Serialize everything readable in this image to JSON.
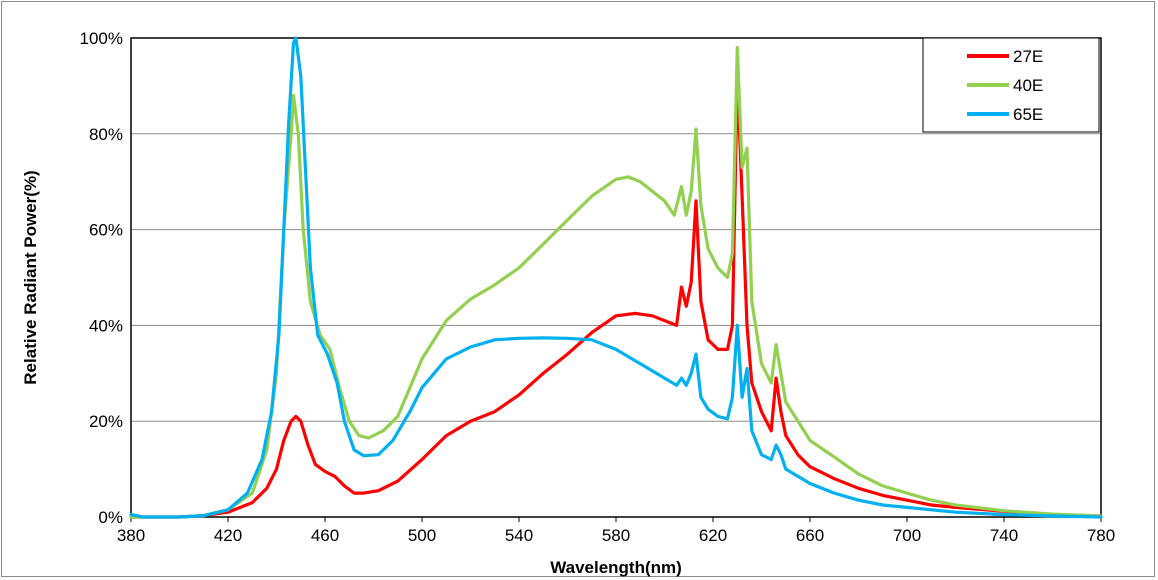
{
  "chart_data": {
    "type": "line",
    "title": "",
    "xlabel": "Wavelength(nm)",
    "ylabel": "Relative Radiant Power(%)",
    "xlim": [
      380,
      780
    ],
    "ylim": [
      0,
      100
    ],
    "x_ticks": [
      380,
      420,
      460,
      500,
      540,
      580,
      620,
      660,
      700,
      740,
      780
    ],
    "y_ticks": [
      0,
      20,
      40,
      60,
      80,
      100
    ],
    "y_tick_labels": [
      "0%",
      "20%",
      "40%",
      "60%",
      "80%",
      "100%"
    ],
    "grid": "horizontal",
    "legend_position": "top-right",
    "series": [
      {
        "name": "27E",
        "color": "#ff0000",
        "points": [
          [
            380,
            0
          ],
          [
            400,
            0
          ],
          [
            410,
            0.3
          ],
          [
            420,
            1
          ],
          [
            430,
            3
          ],
          [
            436,
            6
          ],
          [
            440,
            10
          ],
          [
            443,
            16
          ],
          [
            446,
            20
          ],
          [
            448,
            21
          ],
          [
            450,
            20
          ],
          [
            453,
            15
          ],
          [
            456,
            11
          ],
          [
            460,
            9.5
          ],
          [
            464,
            8.5
          ],
          [
            468,
            6.5
          ],
          [
            472,
            5
          ],
          [
            476,
            5
          ],
          [
            482,
            5.5
          ],
          [
            490,
            7.5
          ],
          [
            500,
            12
          ],
          [
            510,
            17
          ],
          [
            520,
            20
          ],
          [
            530,
            22
          ],
          [
            540,
            25.5
          ],
          [
            550,
            30
          ],
          [
            560,
            34
          ],
          [
            570,
            38.5
          ],
          [
            580,
            42
          ],
          [
            588,
            42.5
          ],
          [
            595,
            42
          ],
          [
            600,
            41
          ],
          [
            605,
            40
          ],
          [
            607,
            48
          ],
          [
            609,
            44
          ],
          [
            611,
            49
          ],
          [
            613,
            66
          ],
          [
            615,
            45
          ],
          [
            618,
            37
          ],
          [
            622,
            35
          ],
          [
            626,
            35
          ],
          [
            628,
            40
          ],
          [
            630,
            92
          ],
          [
            632,
            67
          ],
          [
            634,
            40
          ],
          [
            636,
            28
          ],
          [
            640,
            22
          ],
          [
            644,
            18
          ],
          [
            646,
            29
          ],
          [
            648,
            22
          ],
          [
            650,
            17
          ],
          [
            655,
            13
          ],
          [
            660,
            10.5
          ],
          [
            670,
            8
          ],
          [
            680,
            6
          ],
          [
            690,
            4.5
          ],
          [
            700,
            3.5
          ],
          [
            710,
            2.5
          ],
          [
            720,
            2
          ],
          [
            740,
            1.2
          ],
          [
            760,
            0.5
          ],
          [
            780,
            0.2
          ]
        ]
      },
      {
        "name": "40E",
        "color": "#92d050",
        "points": [
          [
            380,
            0
          ],
          [
            400,
            0
          ],
          [
            410,
            0.3
          ],
          [
            420,
            1.5
          ],
          [
            430,
            5
          ],
          [
            436,
            14
          ],
          [
            440,
            30
          ],
          [
            443,
            60
          ],
          [
            446,
            80
          ],
          [
            447,
            88
          ],
          [
            449,
            80
          ],
          [
            451,
            60
          ],
          [
            454,
            45
          ],
          [
            458,
            38
          ],
          [
            462,
            35
          ],
          [
            466,
            27
          ],
          [
            470,
            20
          ],
          [
            474,
            17
          ],
          [
            478,
            16.5
          ],
          [
            484,
            18
          ],
          [
            490,
            21
          ],
          [
            500,
            33
          ],
          [
            510,
            41
          ],
          [
            520,
            45.5
          ],
          [
            530,
            48.5
          ],
          [
            540,
            52
          ],
          [
            550,
            57
          ],
          [
            560,
            62
          ],
          [
            570,
            67
          ],
          [
            580,
            70.5
          ],
          [
            585,
            71
          ],
          [
            590,
            70
          ],
          [
            595,
            68
          ],
          [
            600,
            66
          ],
          [
            604,
            63
          ],
          [
            607,
            69
          ],
          [
            609,
            63
          ],
          [
            611,
            68
          ],
          [
            613,
            81
          ],
          [
            615,
            65
          ],
          [
            618,
            56
          ],
          [
            622,
            52
          ],
          [
            626,
            50
          ],
          [
            628,
            55
          ],
          [
            630,
            98
          ],
          [
            632,
            73
          ],
          [
            634,
            77
          ],
          [
            636,
            45
          ],
          [
            640,
            32
          ],
          [
            644,
            28
          ],
          [
            646,
            36
          ],
          [
            648,
            30
          ],
          [
            650,
            24
          ],
          [
            655,
            20
          ],
          [
            660,
            16
          ],
          [
            670,
            12.5
          ],
          [
            680,
            9
          ],
          [
            690,
            6.5
          ],
          [
            700,
            5
          ],
          [
            710,
            3.5
          ],
          [
            720,
            2.5
          ],
          [
            740,
            1.3
          ],
          [
            760,
            0.6
          ],
          [
            780,
            0.2
          ]
        ]
      },
      {
        "name": "65E",
        "color": "#00b0f0",
        "points": [
          [
            380,
            0.5
          ],
          [
            385,
            0
          ],
          [
            395,
            0
          ],
          [
            400,
            0
          ],
          [
            410,
            0.3
          ],
          [
            420,
            1.5
          ],
          [
            428,
            5
          ],
          [
            434,
            12
          ],
          [
            438,
            22
          ],
          [
            441,
            38
          ],
          [
            443,
            60
          ],
          [
            445,
            82
          ],
          [
            447,
            99
          ],
          [
            448,
            100
          ],
          [
            450,
            92
          ],
          [
            452,
            72
          ],
          [
            454,
            52
          ],
          [
            457,
            38
          ],
          [
            461,
            34
          ],
          [
            465,
            28
          ],
          [
            468,
            20
          ],
          [
            472,
            14
          ],
          [
            476,
            12.8
          ],
          [
            482,
            13
          ],
          [
            488,
            16
          ],
          [
            495,
            22
          ],
          [
            500,
            27
          ],
          [
            510,
            33
          ],
          [
            520,
            35.5
          ],
          [
            530,
            37
          ],
          [
            540,
            37.3
          ],
          [
            550,
            37.4
          ],
          [
            560,
            37.3
          ],
          [
            570,
            37
          ],
          [
            580,
            35
          ],
          [
            590,
            32
          ],
          [
            600,
            29
          ],
          [
            605,
            27.5
          ],
          [
            607,
            29
          ],
          [
            609,
            27.5
          ],
          [
            611,
            30
          ],
          [
            613,
            34
          ],
          [
            615,
            25
          ],
          [
            618,
            22.5
          ],
          [
            622,
            21
          ],
          [
            626,
            20.5
          ],
          [
            628,
            25
          ],
          [
            630,
            40
          ],
          [
            632,
            25
          ],
          [
            634,
            31
          ],
          [
            636,
            18
          ],
          [
            640,
            13
          ],
          [
            644,
            12
          ],
          [
            646,
            15
          ],
          [
            648,
            13
          ],
          [
            650,
            10
          ],
          [
            655,
            8.5
          ],
          [
            660,
            7
          ],
          [
            670,
            5
          ],
          [
            680,
            3.5
          ],
          [
            690,
            2.5
          ],
          [
            700,
            2
          ],
          [
            710,
            1.5
          ],
          [
            720,
            1
          ],
          [
            740,
            0.5
          ],
          [
            760,
            0.2
          ],
          [
            780,
            0
          ]
        ]
      }
    ]
  }
}
